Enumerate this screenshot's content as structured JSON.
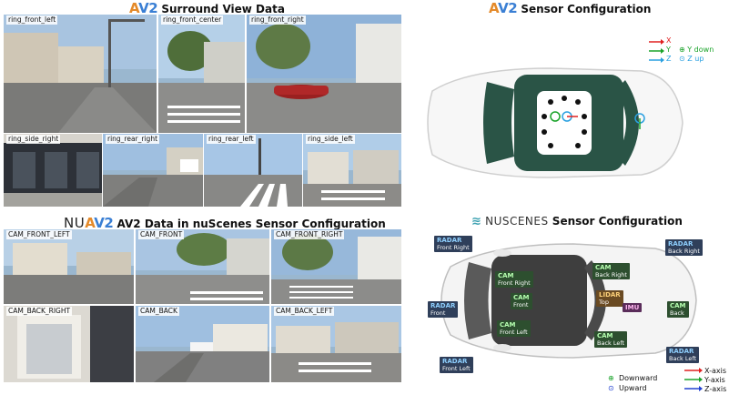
{
  "titles": {
    "surround": {
      "brand_a": "A",
      "brand_v2": "V2",
      "text": "Surround View Data"
    },
    "av2_config": {
      "brand_a": "A",
      "brand_v2": "V2",
      "text": "Sensor Configuration"
    },
    "nu_data": {
      "brand_nu": "NU",
      "brand_a": "A",
      "brand_v2": "V2",
      "text": "AV2 Data in nuScenes Sensor Configuration"
    },
    "nuscenes_config": {
      "brand": "NUSCENES",
      "text": "Sensor Configuration"
    }
  },
  "av2_cameras": [
    {
      "label": "ring_front_left"
    },
    {
      "label": "ring_front_center"
    },
    {
      "label": "ring_front_right"
    },
    {
      "label": "ring_side_right"
    },
    {
      "label": "ring_rear_right"
    },
    {
      "label": "ring_rear_left"
    },
    {
      "label": "ring_side_left"
    }
  ],
  "nu_cameras": [
    {
      "label": "CAM_FRONT_LEFT"
    },
    {
      "label": "CAM_FRONT"
    },
    {
      "label": "CAM_FRONT_RIGHT"
    },
    {
      "label": "CAM_BACK_RIGHT"
    },
    {
      "label": "CAM_BACK"
    },
    {
      "label": "CAM_BACK_LEFT"
    }
  ],
  "av2_legend": {
    "x": "X",
    "y": "Y",
    "z": "Z",
    "y_down": "Y down",
    "z_up": "Z up",
    "colors": {
      "x": "#e02020",
      "y": "#1aa32a",
      "z": "#2aa0e0"
    }
  },
  "nu_sensors": {
    "radar_front_right": {
      "title": "RADAR",
      "sub": "Front Right"
    },
    "radar_back_right": {
      "title": "RADAR",
      "sub": "Back Right"
    },
    "cam_back_right": {
      "title": "CAM",
      "sub": "Back Right"
    },
    "cam_front_right": {
      "title": "CAM",
      "sub": "Front Right"
    },
    "cam_front": {
      "title": "CAM",
      "sub": "Front"
    },
    "cam_front_left": {
      "title": "CAM",
      "sub": "Front Left"
    },
    "cam_back_left": {
      "title": "CAM",
      "sub": "Back Left"
    },
    "cam_back": {
      "title": "CAM",
      "sub": "Back"
    },
    "lidar_top": {
      "title": "LIDAR",
      "sub": "Top"
    },
    "imu": {
      "title": "IMU"
    },
    "radar_front": {
      "title": "RADAR",
      "sub": "Front"
    },
    "radar_front_left": {
      "title": "RADAR",
      "sub": "Front Left"
    },
    "radar_back_left": {
      "title": "RADAR",
      "sub": "Back Left"
    }
  },
  "nu_legend": {
    "downward": "Downward",
    "upward": "Upward",
    "x_axis": "X-axis",
    "y_axis": "Y-axis",
    "z_axis": "Z-axis",
    "colors": {
      "x": "#e02020",
      "y": "#1aa32a",
      "z": "#2040d0"
    }
  }
}
